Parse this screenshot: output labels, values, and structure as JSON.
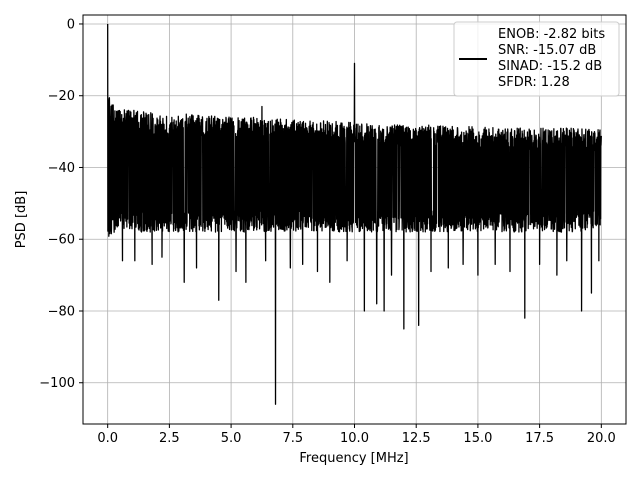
{
  "chart_data": {
    "type": "line",
    "title": "",
    "xlabel": "Frequency [MHz]",
    "ylabel": "PSD [dB]",
    "xlim": [
      -1.0,
      21.0
    ],
    "ylim": [
      -111.5,
      2.5
    ],
    "grid": true,
    "x_ticks": [
      0,
      2.5,
      5,
      7.5,
      10,
      12.5,
      15,
      17.5,
      20
    ],
    "x_tick_labels": [
      "0.0",
      "2.5",
      "5.0",
      "7.5",
      "10.0",
      "12.5",
      "15.0",
      "17.5",
      "20.0"
    ],
    "y_ticks": [
      0,
      -20,
      -40,
      -60,
      -80,
      -100
    ],
    "y_tick_labels": [
      "0",
      "−20",
      "−40",
      "−60",
      "−80",
      "−100"
    ],
    "legend": {
      "placement": "top-right",
      "entries": [
        "ENOB: -2.82 bits",
        "SNR: -15.07 dB",
        "SINAD: -15.2 dB",
        "SFDR: 1.28"
      ]
    },
    "series": [
      {
        "color": "#000000",
        "envelope": {
          "x": [
            0.0,
            0.05,
            0.1,
            0.2,
            0.4,
            0.7,
            1.0,
            1.5,
            2.0,
            3.0,
            4.0,
            5.0,
            6.0,
            7.0,
            8.0,
            9.0,
            10.0,
            11.0,
            12.0,
            13.0,
            14.0,
            15.0,
            16.0,
            17.0,
            18.0,
            19.0,
            20.0
          ],
          "upper": [
            -18,
            -19,
            -21,
            -22,
            -23,
            -24,
            -24,
            -24.5,
            -25,
            -25,
            -25.5,
            -26,
            -26,
            -26.5,
            -27,
            -27,
            -27.5,
            -28,
            -28,
            -28,
            -28.5,
            -28.5,
            -29,
            -29,
            -29,
            -29,
            -29.5
          ],
          "lower": [
            -60,
            -60,
            -59,
            -59,
            -58,
            -58,
            -58,
            -58,
            -58,
            -58,
            -58,
            -58,
            -58,
            -58,
            -58,
            -58,
            -58,
            -58,
            -58,
            -58,
            -58,
            -58,
            -58,
            -58,
            -58,
            -58,
            -57
          ]
        },
        "peaks": [
          {
            "x": 0.0,
            "y": 0.0
          },
          {
            "x": 10.0,
            "y": -11.0
          },
          {
            "x": 6.25,
            "y": -23.0
          }
        ],
        "dips": [
          {
            "x": 0.6,
            "y": -66
          },
          {
            "x": 1.1,
            "y": -66
          },
          {
            "x": 1.8,
            "y": -67
          },
          {
            "x": 2.2,
            "y": -65
          },
          {
            "x": 3.1,
            "y": -72
          },
          {
            "x": 3.6,
            "y": -68
          },
          {
            "x": 4.5,
            "y": -77
          },
          {
            "x": 5.2,
            "y": -69
          },
          {
            "x": 5.6,
            "y": -72
          },
          {
            "x": 6.4,
            "y": -66
          },
          {
            "x": 6.8,
            "y": -106
          },
          {
            "x": 7.4,
            "y": -68
          },
          {
            "x": 7.9,
            "y": -67
          },
          {
            "x": 8.5,
            "y": -69
          },
          {
            "x": 9.0,
            "y": -72
          },
          {
            "x": 9.7,
            "y": -66
          },
          {
            "x": 10.4,
            "y": -80
          },
          {
            "x": 10.9,
            "y": -78
          },
          {
            "x": 11.2,
            "y": -80
          },
          {
            "x": 11.5,
            "y": -70
          },
          {
            "x": 12.0,
            "y": -85
          },
          {
            "x": 12.6,
            "y": -84
          },
          {
            "x": 13.1,
            "y": -69
          },
          {
            "x": 13.8,
            "y": -68
          },
          {
            "x": 14.4,
            "y": -67
          },
          {
            "x": 15.0,
            "y": -70
          },
          {
            "x": 15.7,
            "y": -67
          },
          {
            "x": 16.3,
            "y": -69
          },
          {
            "x": 16.9,
            "y": -82
          },
          {
            "x": 17.5,
            "y": -67
          },
          {
            "x": 18.2,
            "y": -70
          },
          {
            "x": 18.6,
            "y": -66
          },
          {
            "x": 19.2,
            "y": -80
          },
          {
            "x": 19.6,
            "y": -75
          },
          {
            "x": 19.9,
            "y": -66
          }
        ]
      }
    ]
  }
}
